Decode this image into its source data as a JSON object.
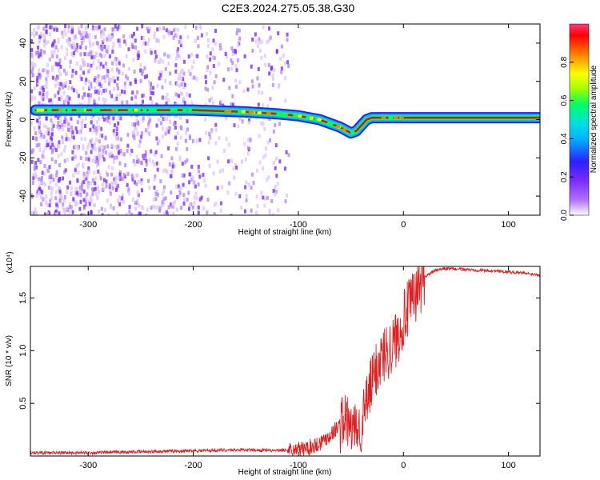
{
  "title": "C2E3.2024.275.05.38.G30",
  "chart_data": [
    {
      "type": "heatmap",
      "xlabel": "Height of straight line (km)",
      "ylabel": "Frequency (Hz)",
      "xlim": [
        -355,
        130
      ],
      "ylim": [
        -50,
        50
      ],
      "xticks": [
        -300,
        -200,
        -100,
        0,
        100
      ],
      "yticks": [
        -40,
        -20,
        0,
        20,
        40
      ],
      "colorbar": {
        "label": "Normalized spectral amplitude",
        "range": [
          0,
          1
        ],
        "ticks": [
          0.0,
          0.2,
          0.4,
          0.6,
          0.8
        ],
        "colormap": [
          "#ffffff",
          "#b070ff",
          "#7d2cff",
          "#2a20ff",
          "#00b4ff",
          "#00e0e0",
          "#00ff60",
          "#a0ff00",
          "#ffff00",
          "#ff8000",
          "#ff0000",
          "#ff3c78"
        ]
      },
      "ridge": {
        "x": [
          -350,
          -300,
          -250,
          -200,
          -150,
          -120,
          -100,
          -80,
          -60,
          -50,
          -45,
          -40,
          -35,
          -30,
          -20,
          -10,
          0,
          130
        ],
        "frequency": [
          5,
          5,
          5,
          5,
          4,
          3,
          2,
          0,
          -4,
          -7,
          -6,
          -3,
          0,
          1,
          1,
          1,
          1,
          1
        ]
      },
      "noise_scatter_range": {
        "x": [
          -355,
          -110
        ],
        "frequency": [
          -50,
          50
        ]
      }
    },
    {
      "type": "line",
      "xlabel": "Height of straight line (km)",
      "ylabel": "SNR (10 * v/v)",
      "y_multiplier": "(x10⁴)",
      "xlim": [
        -355,
        130
      ],
      "ylim": [
        0,
        1.8
      ],
      "xticks": [
        -300,
        -200,
        -100,
        0,
        100
      ],
      "yticks": [
        0.5,
        1.0,
        1.5
      ],
      "color": "#e02020",
      "series": [
        {
          "x": [
            -355,
            -300,
            -250,
            -200,
            -150,
            -120,
            -100,
            -90,
            -80,
            -70,
            -60,
            -55,
            -50,
            -45,
            -40,
            -35,
            -30,
            -25,
            -20,
            -15,
            -10,
            -5,
            0,
            5,
            10,
            15,
            20,
            25,
            30,
            40,
            60,
            80,
            100,
            130
          ],
          "values": [
            0.03,
            0.03,
            0.04,
            0.05,
            0.06,
            0.05,
            0.06,
            0.08,
            0.12,
            0.2,
            0.3,
            0.35,
            0.25,
            0.2,
            0.3,
            0.5,
            0.7,
            0.85,
            0.95,
            1.0,
            1.05,
            1.15,
            1.3,
            1.4,
            1.5,
            1.6,
            1.7,
            1.73,
            1.76,
            1.78,
            1.77,
            1.76,
            1.75,
            1.72
          ]
        }
      ]
    }
  ]
}
